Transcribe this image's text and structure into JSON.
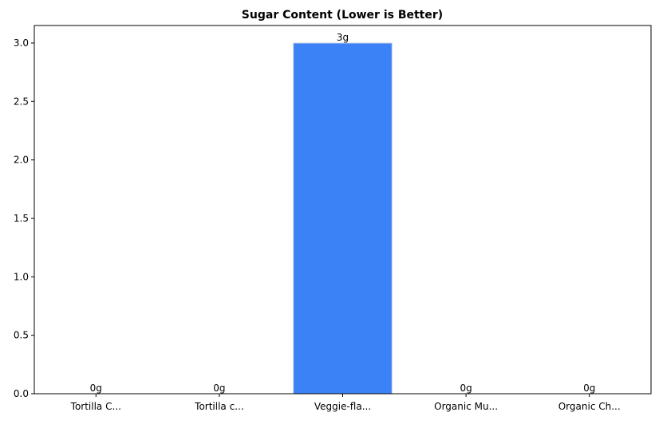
{
  "chart_data": {
    "type": "bar",
    "title": "Sugar Content (Lower is Better)",
    "xlabel": "",
    "ylabel": "",
    "categories": [
      "Tortilla C...",
      "Tortilla c...",
      "Veggie-fla...",
      "Organic Mu...",
      "Organic Ch..."
    ],
    "values": [
      0,
      0,
      3,
      0,
      0
    ],
    "value_labels": [
      "0g",
      "0g",
      "3g",
      "0g",
      "0g"
    ],
    "ylim": [
      0,
      3.15
    ],
    "yticks": [
      0.0,
      0.5,
      1.0,
      1.5,
      2.0,
      2.5,
      3.0
    ],
    "ytick_labels": [
      "0.0",
      "0.5",
      "1.0",
      "1.5",
      "2.0",
      "2.5",
      "3.0"
    ],
    "grid": false,
    "colors": {
      "bar": "#3b82f6",
      "bar_edge": "#c8d2e0"
    }
  }
}
